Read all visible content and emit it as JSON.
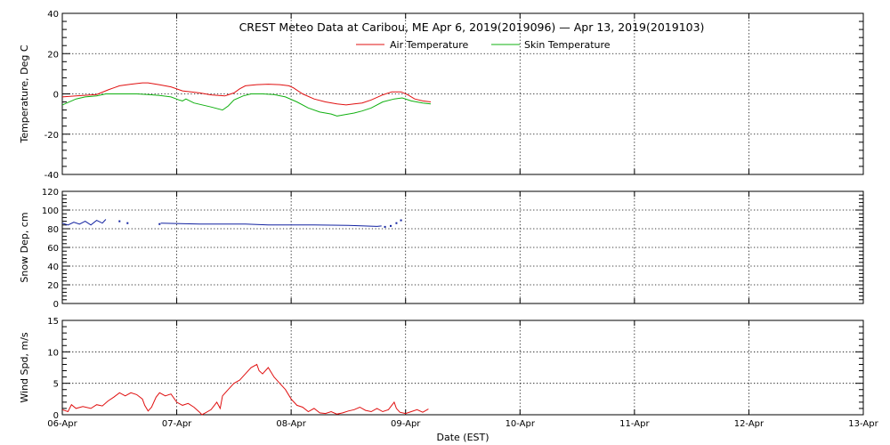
{
  "chart_data": {
    "type": "line",
    "title": "CREST Meteo Data at Caribou, ME   Apr  6, 2019(2019096) — Apr 13, 2019(2019103)",
    "xlabel": "Date (EST)",
    "x_range_days": [
      0,
      7
    ],
    "x_tick_labels": [
      "06-Apr",
      "07-Apr",
      "08-Apr",
      "09-Apr",
      "10-Apr",
      "11-Apr",
      "12-Apr",
      "13-Apr"
    ],
    "grid": true,
    "panels": [
      {
        "ylabel": "Temperature, Deg C",
        "ylim": [
          -40,
          40
        ],
        "y_ticks": [
          -40,
          -20,
          0,
          20,
          40
        ],
        "legend": "top-center",
        "series": [
          {
            "name": "Air Temperature",
            "color": "#e01010",
            "points": [
              [
                0.0,
                -1.5
              ],
              [
                0.12,
                -1.0
              ],
              [
                0.3,
                -0.3
              ],
              [
                0.4,
                2.0
              ],
              [
                0.5,
                4.0
              ],
              [
                0.6,
                4.8
              ],
              [
                0.7,
                5.5
              ],
              [
                0.75,
                5.5
              ],
              [
                0.85,
                4.5
              ],
              [
                0.95,
                3.5
              ],
              [
                1.05,
                1.5
              ],
              [
                1.2,
                0.5
              ],
              [
                1.3,
                -0.5
              ],
              [
                1.42,
                -1.0
              ],
              [
                1.5,
                0.5
              ],
              [
                1.55,
                2.5
              ],
              [
                1.6,
                4.0
              ],
              [
                1.7,
                4.6
              ],
              [
                1.8,
                4.8
              ],
              [
                1.9,
                4.6
              ],
              [
                1.98,
                4.0
              ],
              [
                2.02,
                3.0
              ],
              [
                2.1,
                0.0
              ],
              [
                2.2,
                -2.5
              ],
              [
                2.3,
                -4.0
              ],
              [
                2.4,
                -5.0
              ],
              [
                2.48,
                -5.5
              ],
              [
                2.55,
                -5.0
              ],
              [
                2.62,
                -4.5
              ],
              [
                2.7,
                -3.0
              ],
              [
                2.8,
                -0.5
              ],
              [
                2.88,
                1.0
              ],
              [
                2.96,
                1.0
              ],
              [
                3.02,
                -0.5
              ],
              [
                3.08,
                -2.5
              ],
              [
                3.15,
                -3.5
              ],
              [
                3.22,
                -4.0
              ]
            ]
          },
          {
            "name": "Skin Temperature",
            "color": "#10b010",
            "points": [
              [
                0.0,
                -5.5
              ],
              [
                0.12,
                -2.5
              ],
              [
                0.2,
                -1.5
              ],
              [
                0.3,
                -1.0
              ],
              [
                0.38,
                0.0
              ],
              [
                0.5,
                0.0
              ],
              [
                0.65,
                0.0
              ],
              [
                0.75,
                -0.3
              ],
              [
                0.85,
                -0.8
              ],
              [
                0.95,
                -1.5
              ],
              [
                1.02,
                -3.0
              ],
              [
                1.05,
                -3.5
              ],
              [
                1.08,
                -2.5
              ],
              [
                1.15,
                -4.5
              ],
              [
                1.3,
                -6.5
              ],
              [
                1.4,
                -8.0
              ],
              [
                1.45,
                -6.0
              ],
              [
                1.5,
                -3.0
              ],
              [
                1.58,
                -1.0
              ],
              [
                1.65,
                0.0
              ],
              [
                1.75,
                0.0
              ],
              [
                1.85,
                -0.3
              ],
              [
                1.95,
                -1.5
              ],
              [
                2.05,
                -4.0
              ],
              [
                2.15,
                -7.0
              ],
              [
                2.25,
                -9.0
              ],
              [
                2.35,
                -10.0
              ],
              [
                2.4,
                -11.0
              ],
              [
                2.45,
                -10.5
              ],
              [
                2.55,
                -9.5
              ],
              [
                2.62,
                -8.5
              ],
              [
                2.7,
                -7.0
              ],
              [
                2.8,
                -4.0
              ],
              [
                2.9,
                -2.5
              ],
              [
                2.97,
                -2.0
              ],
              [
                3.05,
                -3.5
              ],
              [
                3.15,
                -4.5
              ],
              [
                3.22,
                -5.0
              ]
            ]
          }
        ]
      },
      {
        "ylabel": "Snow Dep, cm",
        "ylim": [
          0,
          120
        ],
        "y_ticks": [
          0,
          20,
          40,
          60,
          80,
          100,
          120
        ],
        "series": [
          {
            "name": "",
            "color": "#1020a0",
            "points": [
              [
                0.0,
                86
              ],
              [
                0.05,
                84
              ],
              [
                0.1,
                87
              ],
              [
                0.15,
                85
              ],
              [
                0.2,
                88
              ],
              [
                0.25,
                84
              ],
              [
                0.3,
                89
              ],
              [
                0.35,
                86
              ],
              [
                0.38,
                90
              ]
            ],
            "scatter": [
              [
                0.5,
                88
              ],
              [
                0.57,
                86
              ],
              [
                0.85,
                85
              ],
              [
                2.82,
                82
              ],
              [
                2.87,
                83
              ],
              [
                2.92,
                86
              ],
              [
                2.96,
                89
              ]
            ],
            "segments": [
              [
                [
                  0.86,
                  86
                ],
                [
                  1.2,
                  85
                ],
                [
                  1.6,
                  85
                ],
                [
                  1.8,
                  84
                ],
                [
                  2.2,
                  84
                ],
                [
                  2.5,
                  83.5
                ],
                [
                  2.75,
                  82.5
                ],
                [
                  2.79,
                  83
                ]
              ]
            ]
          }
        ]
      },
      {
        "ylabel": "Wind Spd, m/s",
        "ylim": [
          0,
          15
        ],
        "y_ticks": [
          0,
          5,
          10,
          15
        ],
        "series": [
          {
            "name": "",
            "color": "#e01010",
            "points": [
              [
                0.0,
                0.8
              ],
              [
                0.05,
                0.5
              ],
              [
                0.08,
                1.6
              ],
              [
                0.12,
                1.0
              ],
              [
                0.18,
                1.3
              ],
              [
                0.25,
                1.0
              ],
              [
                0.3,
                1.6
              ],
              [
                0.35,
                1.4
              ],
              [
                0.4,
                2.2
              ],
              [
                0.45,
                2.8
              ],
              [
                0.5,
                3.5
              ],
              [
                0.55,
                3.0
              ],
              [
                0.6,
                3.5
              ],
              [
                0.65,
                3.2
              ],
              [
                0.7,
                2.5
              ],
              [
                0.72,
                1.5
              ],
              [
                0.75,
                0.6
              ],
              [
                0.78,
                1.2
              ],
              [
                0.82,
                2.8
              ],
              [
                0.85,
                3.5
              ],
              [
                0.9,
                3.0
              ],
              [
                0.95,
                3.3
              ],
              [
                1.0,
                2.0
              ],
              [
                1.05,
                1.5
              ],
              [
                1.1,
                1.8
              ],
              [
                1.15,
                1.2
              ],
              [
                1.2,
                0.4
              ],
              [
                1.22,
                0.0
              ],
              [
                1.25,
                0.3
              ],
              [
                1.3,
                0.8
              ],
              [
                1.35,
                2.0
              ],
              [
                1.38,
                1.0
              ],
              [
                1.4,
                3.0
              ],
              [
                1.45,
                4.0
              ],
              [
                1.5,
                5.0
              ],
              [
                1.55,
                5.5
              ],
              [
                1.6,
                6.5
              ],
              [
                1.65,
                7.5
              ],
              [
                1.7,
                8.0
              ],
              [
                1.72,
                7.0
              ],
              [
                1.75,
                6.5
              ],
              [
                1.8,
                7.5
              ],
              [
                1.85,
                6.0
              ],
              [
                1.9,
                5.0
              ],
              [
                1.95,
                4.0
              ],
              [
                2.0,
                2.5
              ],
              [
                2.05,
                1.5
              ],
              [
                2.1,
                1.2
              ],
              [
                2.15,
                0.5
              ],
              [
                2.2,
                1.0
              ],
              [
                2.25,
                0.3
              ],
              [
                2.3,
                0.2
              ],
              [
                2.35,
                0.5
              ],
              [
                2.4,
                0.1
              ],
              [
                2.45,
                0.3
              ],
              [
                2.5,
                0.6
              ],
              [
                2.55,
                0.8
              ],
              [
                2.6,
                1.2
              ],
              [
                2.65,
                0.7
              ],
              [
                2.7,
                0.5
              ],
              [
                2.75,
                1.0
              ],
              [
                2.8,
                0.5
              ],
              [
                2.85,
                0.8
              ],
              [
                2.9,
                2.0
              ],
              [
                2.92,
                1.0
              ],
              [
                2.95,
                0.4
              ],
              [
                3.0,
                0.2
              ],
              [
                3.05,
                0.5
              ],
              [
                3.1,
                0.8
              ],
              [
                3.15,
                0.4
              ],
              [
                3.2,
                0.9
              ]
            ]
          }
        ]
      }
    ]
  }
}
